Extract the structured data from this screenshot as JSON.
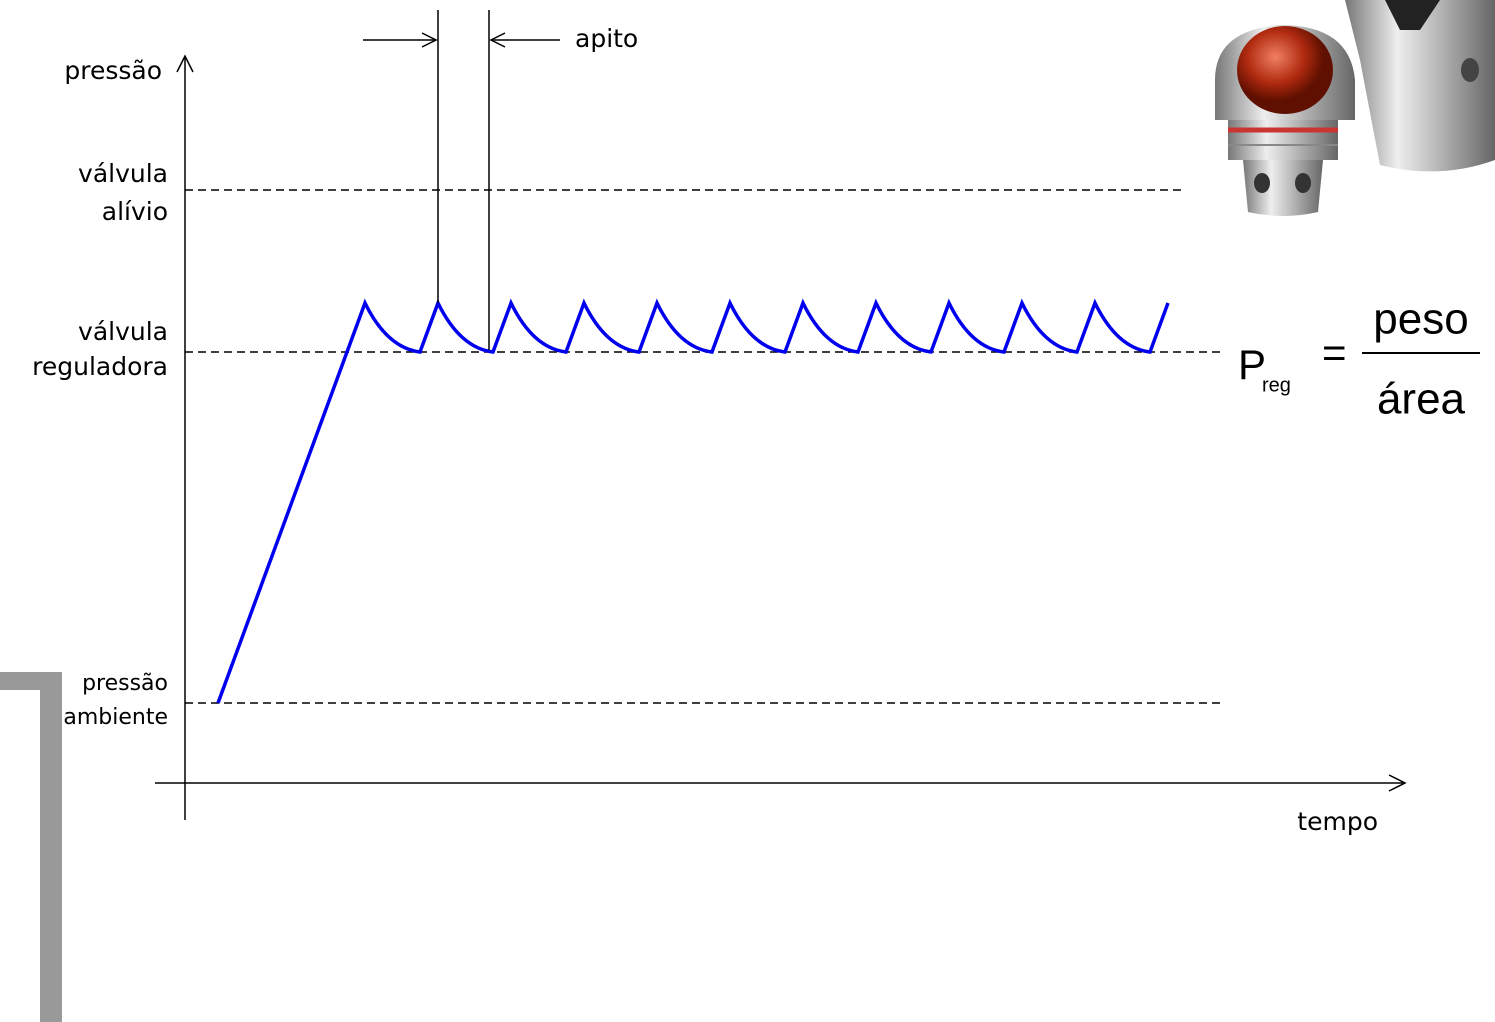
{
  "axes": {
    "y_label": "pressão",
    "x_label": "tempo"
  },
  "levels": [
    {
      "lines": [
        "válvula",
        "alívio"
      ]
    },
    {
      "lines": [
        "válvula",
        "reguladora"
      ]
    },
    {
      "lines": [
        "pressão",
        "ambiente"
      ]
    }
  ],
  "annotation": "apito",
  "formula": {
    "symbol": "P",
    "subscript": "reg",
    "equals": "=",
    "numerator": "peso",
    "denominator": "área"
  }
}
